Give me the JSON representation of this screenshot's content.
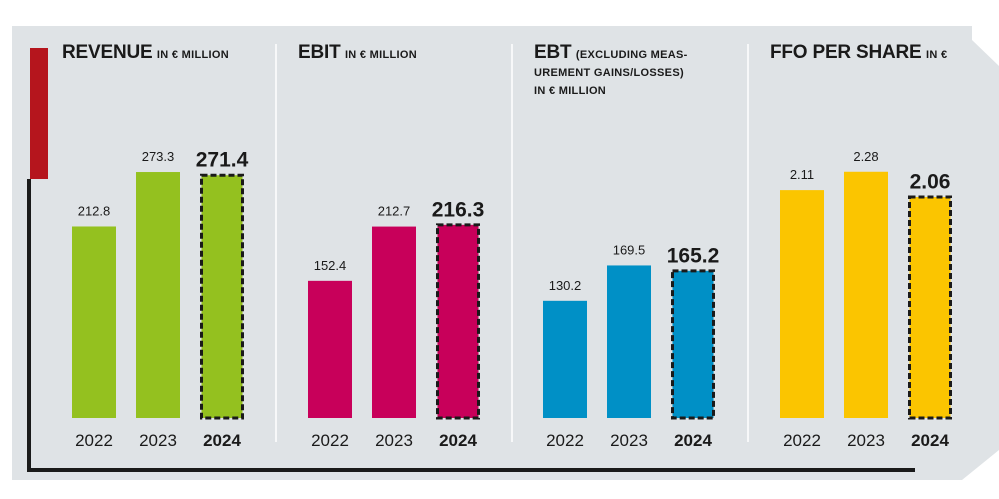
{
  "colors": {
    "background": "#dfe3e6",
    "accent_red": "#b5151d",
    "axis": "#1a1a1a",
    "revenue": "#94c11f",
    "ebit": "#c8005a",
    "ebt": "#0090c6",
    "ffo": "#fbc500"
  },
  "chart_data": [
    {
      "type": "bar",
      "title": "REVENUE",
      "unit": "IN € MILLION",
      "categories": [
        "2022",
        "2023",
        "2024"
      ],
      "values": [
        212.8,
        273.3,
        271.4
      ],
      "value_labels": [
        "212.8",
        "273.3",
        "271.4"
      ],
      "highlight_index": 2,
      "ylim": [
        0,
        300
      ],
      "color": "#94c11f"
    },
    {
      "type": "bar",
      "title": "EBIT",
      "unit": "IN € MILLION",
      "categories": [
        "2022",
        "2023",
        "2024"
      ],
      "values": [
        152.4,
        212.7,
        216.3
      ],
      "value_labels": [
        "152.4",
        "212.7",
        "216.3"
      ],
      "highlight_index": 2,
      "ylim": [
        0,
        300
      ],
      "color": "#c8005a"
    },
    {
      "type": "bar",
      "title": "EBT",
      "unit_lines": [
        "(EXCLUDING MEAS-",
        "UREMENT GAINS/LOSSES)",
        "IN € MILLION"
      ],
      "categories": [
        "2022",
        "2023",
        "2024"
      ],
      "values": [
        130.2,
        169.5,
        165.2
      ],
      "value_labels": [
        "130.2",
        "169.5",
        "165.2"
      ],
      "highlight_index": 2,
      "ylim": [
        0,
        300
      ],
      "color": "#0090c6"
    },
    {
      "type": "bar",
      "title": "FFO PER SHARE",
      "unit": "IN €",
      "categories": [
        "2022",
        "2023",
        "2024"
      ],
      "values": [
        2.11,
        2.28,
        2.06
      ],
      "value_labels": [
        "2.11",
        "2.28",
        "2.06"
      ],
      "highlight_index": 2,
      "ylim": [
        0,
        2.5
      ],
      "color": "#fbc500"
    }
  ]
}
